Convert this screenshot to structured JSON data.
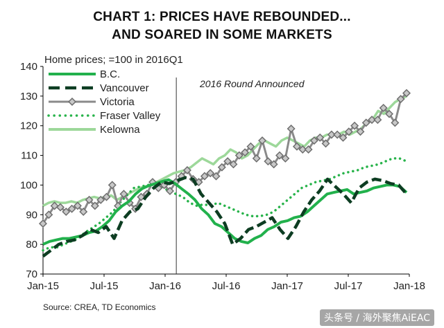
{
  "chart_data": {
    "type": "line",
    "title_line1": "CHART 1: PRICES HAVE REBOUNDED...",
    "title_line2": "AND SOARED IN SOME MARKETS",
    "ylabel": "Home prices; =100 in 2016Q1",
    "ylim": [
      70,
      140
    ],
    "yticks": [
      "70",
      "80",
      "90",
      "100",
      "110",
      "120",
      "130",
      "140"
    ],
    "xlim": [
      0,
      36
    ],
    "xticks": [
      {
        "label": "Jan-15",
        "x": 0
      },
      {
        "label": "Jul-15",
        "x": 6
      },
      {
        "label": "Jan-16",
        "x": 12
      },
      {
        "label": "Jul-16",
        "x": 18
      },
      {
        "label": "Jan-17",
        "x": 24
      },
      {
        "label": "Jul-17",
        "x": 30
      },
      {
        "label": "Jan-18",
        "x": 36
      }
    ],
    "annotation": {
      "text": "2016 Round Announced",
      "x": 13.1
    },
    "series": [
      {
        "name": "B.C.",
        "color": "#22b14c",
        "style": "solid",
        "values": [
          80,
          81,
          81.5,
          82,
          82,
          82.5,
          83,
          84,
          84.5,
          86,
          88,
          91,
          93,
          94.5,
          97,
          98.8,
          99.8,
          100.5,
          101.2,
          101.8,
          100.5,
          98.7,
          97,
          95,
          92,
          90,
          87,
          86,
          84,
          82,
          81,
          80.5,
          82,
          83,
          85,
          86,
          87.5,
          88,
          89,
          89.5,
          91,
          93,
          95,
          97,
          97.5,
          98,
          98.5,
          97,
          97.5,
          98,
          99,
          99.5,
          100,
          100,
          99.5,
          97.5
        ]
      },
      {
        "name": "Vancouver",
        "color": "#0d3d22",
        "style": "dash",
        "values": [
          76,
          78,
          80,
          81,
          81.5,
          83,
          85,
          84,
          86,
          82,
          88,
          91,
          92,
          96,
          99,
          101,
          100.5,
          101.5,
          102.5,
          102,
          97,
          94,
          91,
          87,
          80,
          82,
          85,
          86,
          87.5,
          89,
          85,
          82,
          86,
          91,
          95,
          98,
          102,
          99.5,
          97,
          94,
          99,
          101,
          102,
          101.5,
          100.5,
          100,
          97
        ]
      },
      {
        "name": "Victoria",
        "color": "#8a8a8a",
        "style": "diamond",
        "values": [
          87,
          90,
          93,
          92.5,
          91,
          92,
          93,
          91,
          95,
          93,
          95,
          96,
          100,
          93,
          97,
          94,
          92,
          96,
          97,
          101,
          99,
          100,
          98,
          101,
          103,
          105,
          102,
          101,
          103,
          104,
          103,
          106,
          108,
          107,
          110,
          111,
          113,
          109,
          115,
          108,
          107,
          110,
          109,
          119,
          113,
          112,
          112,
          115,
          116,
          114,
          117,
          117,
          116,
          118,
          120,
          118,
          121,
          122,
          122,
          126,
          124,
          121,
          129,
          131
        ]
      },
      {
        "name": "Fraser Valley",
        "color": "#27b34a",
        "style": "dot",
        "values": [
          78,
          79,
          79,
          80,
          81,
          82,
          84,
          85.5,
          87,
          89,
          91,
          94,
          96.5,
          99,
          99.5,
          100,
          100.5,
          99.5,
          98,
          97,
          96,
          94,
          93,
          93.5,
          93,
          94,
          93,
          92,
          91,
          90,
          89.5,
          89.5,
          90,
          91,
          93,
          95,
          97,
          99,
          100,
          101,
          101.5,
          102,
          103,
          104,
          104.5,
          105,
          106,
          106.5,
          107,
          108,
          109,
          109,
          108
        ]
      },
      {
        "name": "Kelowna",
        "color": "#9dd89a",
        "style": "solid",
        "values": [
          93,
          94,
          94.5,
          94,
          94,
          94.5,
          94,
          95,
          95.5,
          96,
          95.5,
          96,
          96.5,
          95,
          96,
          97,
          98,
          99,
          99.5,
          100,
          101,
          102,
          103,
          104,
          104.5,
          105,
          106,
          107.5,
          109,
          108,
          107,
          109,
          110,
          112,
          111,
          109,
          110,
          112,
          114,
          115,
          114,
          113,
          115,
          116,
          115,
          114,
          113,
          115,
          116,
          116,
          117,
          117,
          117,
          118,
          117,
          118,
          119,
          121,
          122,
          125,
          124,
          126,
          128,
          129,
          130
        ]
      }
    ]
  },
  "legend": {
    "items": [
      "B.C.",
      "Vancouver",
      "Victoria",
      "Fraser Valley",
      "Kelowna"
    ]
  },
  "footer": {
    "source": "Source:  CREA,  TD Economics",
    "watermark": "头条号 / 海外聚焦AiEAC"
  }
}
